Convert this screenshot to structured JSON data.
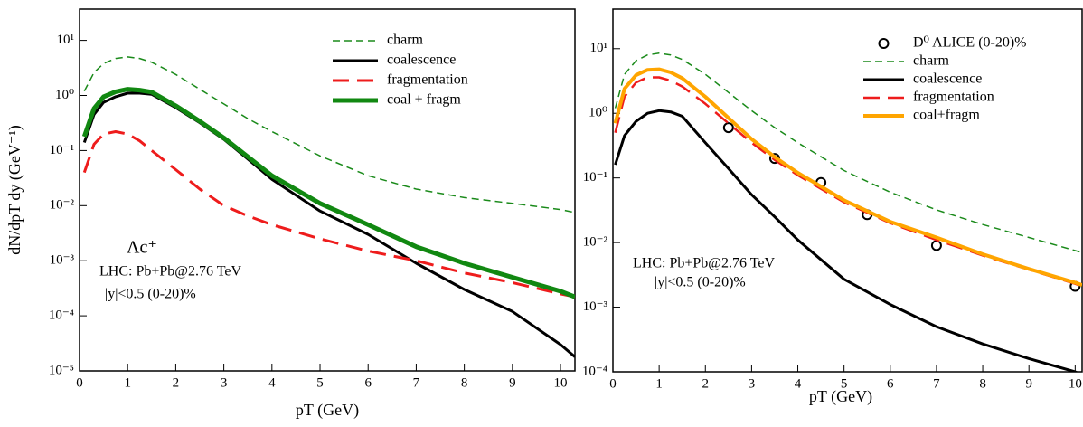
{
  "chart_data": [
    {
      "type": "line",
      "ylabel": "dN/dpT dy (GeV⁻¹)",
      "xlabel": "pT (GeV)",
      "log_y": true,
      "legend": "upper right",
      "xlim": [
        0,
        10.3
      ],
      "ylim": [
        1e-05,
        37
      ],
      "xticks": [
        0,
        1,
        2,
        3,
        4,
        5,
        6,
        7,
        8,
        9,
        10
      ],
      "yticks": [
        {
          "value": 10,
          "label": "10¹"
        },
        {
          "value": 1,
          "label": "10⁰"
        },
        {
          "value": 0.1,
          "label": "10⁻¹"
        },
        {
          "value": 0.01,
          "label": "10⁻²"
        },
        {
          "value": 0.001,
          "label": "10⁻³"
        },
        {
          "value": 0.0001,
          "label": "10⁻⁴"
        },
        {
          "value": 1e-05,
          "label": "10⁻⁵"
        }
      ],
      "annotations": [
        "Λc⁺",
        "LHC: Pb+Pb@2.76 TeV",
        "|y|<0.5 (0-20)%"
      ],
      "x": [
        0.1,
        0.3,
        0.5,
        0.75,
        1,
        1.25,
        1.5,
        2,
        2.5,
        3,
        3.5,
        4,
        5,
        6,
        7,
        8,
        9,
        10,
        10.3
      ],
      "series": [
        {
          "name": "charm",
          "color": "#1a8a1a",
          "style": "dashed",
          "linewidth": 1.5,
          "values": [
            1.2,
            2.6,
            3.8,
            4.7,
            5.0,
            4.7,
            4.0,
            2.4,
            1.3,
            0.7,
            0.38,
            0.22,
            0.08,
            0.035,
            0.02,
            0.014,
            0.011,
            0.0085,
            0.0075
          ]
        },
        {
          "name": "coalescence",
          "color": "#000000",
          "style": "solid",
          "linewidth": 3,
          "values": [
            0.14,
            0.45,
            0.75,
            0.95,
            1.1,
            1.1,
            1.05,
            0.6,
            0.32,
            0.16,
            0.07,
            0.03,
            0.008,
            0.003,
            0.0009,
            0.0003,
            0.00012,
            3e-05,
            1.8e-05
          ]
        },
        {
          "name": "fragmentation",
          "color": "#ee1c1c",
          "style": "longdash",
          "linewidth": 3,
          "values": [
            0.04,
            0.13,
            0.2,
            0.22,
            0.2,
            0.15,
            0.1,
            0.045,
            0.02,
            0.01,
            0.0065,
            0.0045,
            0.0025,
            0.0015,
            0.001,
            0.0006,
            0.0004,
            0.00025,
            0.00022
          ]
        },
        {
          "name": "coal + fragm",
          "color": "#118811",
          "style": "solid",
          "linewidth": 5,
          "values": [
            0.18,
            0.58,
            0.95,
            1.17,
            1.3,
            1.25,
            1.15,
            0.65,
            0.34,
            0.17,
            0.077,
            0.035,
            0.011,
            0.0045,
            0.0018,
            0.0009,
            0.0005,
            0.00028,
            0.00022
          ]
        }
      ]
    },
    {
      "type": "line",
      "xlabel": "pT (GeV)",
      "log_y": true,
      "legend": "upper right",
      "xlim": [
        0,
        10.15
      ],
      "ylim": [
        0.0001,
        41
      ],
      "xticks": [
        0,
        1,
        2,
        3,
        4,
        5,
        6,
        7,
        8,
        9,
        10
      ],
      "yticks": [
        {
          "value": 10,
          "label": "10¹"
        },
        {
          "value": 1,
          "label": "10⁰"
        },
        {
          "value": 0.1,
          "label": "10⁻¹"
        },
        {
          "value": 0.01,
          "label": "10⁻²"
        },
        {
          "value": 0.001,
          "label": "10⁻³"
        },
        {
          "value": 0.0001,
          "label": "10⁻⁴"
        }
      ],
      "annotations": [
        "LHC: Pb+Pb@2.76 TeV",
        "|y|<0.5 (0-20)%"
      ],
      "x": [
        0.05,
        0.25,
        0.5,
        0.75,
        1,
        1.25,
        1.5,
        2,
        2.5,
        3,
        3.5,
        4,
        5,
        6,
        7,
        8,
        9,
        10,
        10.15
      ],
      "series": [
        {
          "name": "D⁰ ALICE (0-20)%",
          "color": "#000000",
          "marker": "circle",
          "x": [
            2.5,
            3.5,
            4.5,
            5.5,
            7,
            10
          ],
          "values": [
            0.6,
            0.2,
            0.085,
            0.027,
            0.009,
            0.0021
          ]
        },
        {
          "name": "charm",
          "color": "#1a8a1a",
          "style": "dashed",
          "linewidth": 1.5,
          "values": [
            1.2,
            4,
            6.5,
            8,
            8.5,
            8,
            6.8,
            4,
            2.1,
            1.1,
            0.6,
            0.35,
            0.13,
            0.06,
            0.032,
            0.019,
            0.012,
            0.0075,
            0.007
          ]
        },
        {
          "name": "coalescence",
          "color": "#000000",
          "style": "solid",
          "linewidth": 3,
          "values": [
            0.16,
            0.45,
            0.75,
            1.0,
            1.1,
            1.05,
            0.9,
            0.35,
            0.14,
            0.055,
            0.025,
            0.011,
            0.0027,
            0.0011,
            0.0005,
            0.00027,
            0.00016,
            0.0001,
            9e-05
          ]
        },
        {
          "name": "fragmentation",
          "color": "#ee1c1c",
          "style": "longdash",
          "linewidth": 2.5,
          "values": [
            0.5,
            1.8,
            3.0,
            3.6,
            3.6,
            3.2,
            2.6,
            1.4,
            0.7,
            0.35,
            0.19,
            0.11,
            0.042,
            0.02,
            0.011,
            0.0063,
            0.0038,
            0.0023,
            0.0021
          ]
        },
        {
          "name": "coal+fragm",
          "color": "#ffa500",
          "style": "solid",
          "linewidth": 4,
          "values": [
            0.7,
            2.4,
            3.9,
            4.7,
            4.8,
            4.3,
            3.5,
            1.8,
            0.85,
            0.4,
            0.21,
            0.12,
            0.045,
            0.021,
            0.012,
            0.0066,
            0.0039,
            0.0024,
            0.0022
          ]
        }
      ]
    }
  ]
}
